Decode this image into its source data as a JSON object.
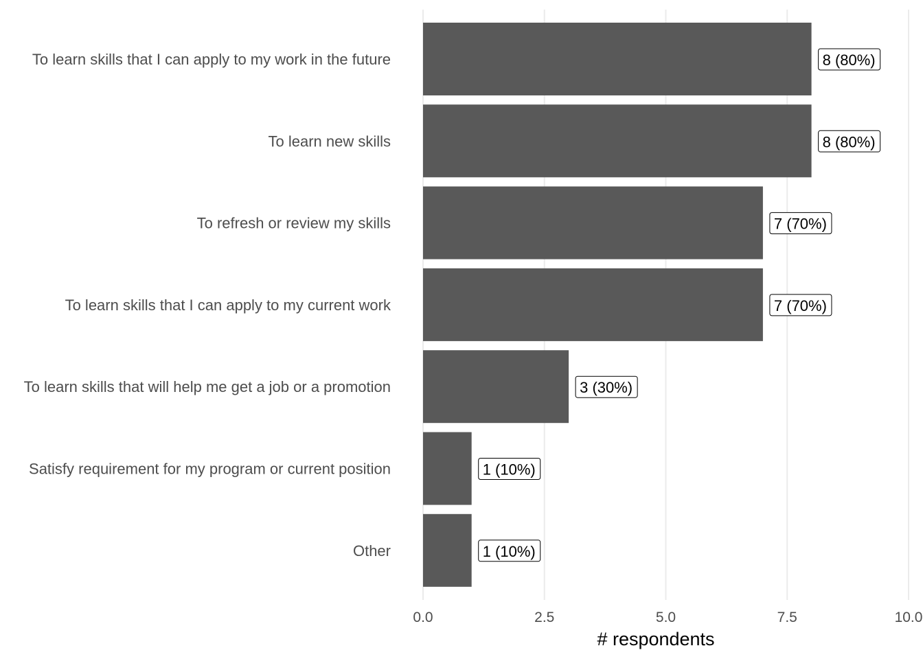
{
  "chart_data": {
    "type": "bar",
    "orientation": "horizontal",
    "categories": [
      "To learn skills that I can apply to my work in the future",
      "To learn new skills",
      "To refresh or review my skills",
      "To learn skills that I can apply to my current work",
      "To learn skills that will help me get a job or a promotion",
      "Satisfy requirement for my program or current position",
      "Other"
    ],
    "values": [
      8,
      8,
      7,
      7,
      3,
      1,
      1
    ],
    "data_labels": [
      "8 (80%)",
      "8 (80%)",
      "7 (70%)",
      "7 (70%)",
      "3 (30%)",
      "1 (10%)",
      "1 (10%)"
    ],
    "xlabel": "# respondents",
    "ylabel": "",
    "title": "",
    "xlim": [
      0,
      10
    ],
    "x_ticks": [
      "0.0",
      "2.5",
      "5.0",
      "7.5",
      "10.0"
    ],
    "grid": "vertical",
    "bar_color": "#595959"
  }
}
